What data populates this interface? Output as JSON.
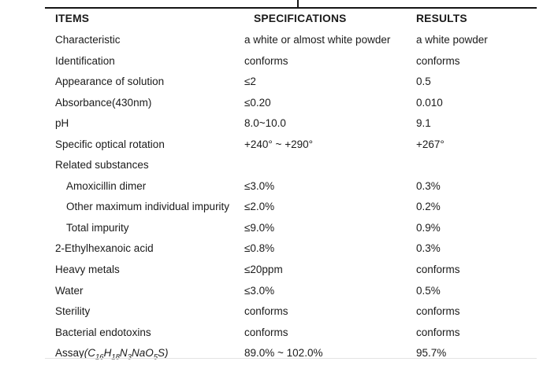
{
  "table": {
    "headers": [
      {
        "label": "ITEMS"
      },
      {
        "label": "SPECIFICATIONS"
      },
      {
        "label": "RESULTS"
      }
    ],
    "rows": [
      {
        "item": "Characteristic",
        "spec": "a white or almost white powder",
        "result": "a white powder"
      },
      {
        "item": "Identification",
        "spec": "conforms",
        "result": "conforms"
      },
      {
        "item": "Appearance of solution",
        "spec": "≤2",
        "result": "0.5"
      },
      {
        "item": "Absorbance(430nm)",
        "spec": "≤0.20",
        "result": "0.010"
      },
      {
        "item": "pH",
        "spec": "8.0~10.0",
        "result": "9.1"
      },
      {
        "item": "Specific optical rotation",
        "spec": "+240° ~ +290°",
        "result": "+267°"
      },
      {
        "item": "Related substances",
        "spec": "",
        "result": ""
      },
      {
        "item": "Amoxicillin dimer",
        "indent": true,
        "spec": "≤3.0%",
        "result": "0.3%"
      },
      {
        "item": "Other maximum individual impurity",
        "indent": true,
        "spec": "≤2.0%",
        "result": "0.2%"
      },
      {
        "item": "Total impurity",
        "indent": true,
        "spec": "≤9.0%",
        "result": "0.9%"
      },
      {
        "item": "2-Ethylhexanoic acid",
        "spec": "≤0.8%",
        "result": "0.3%"
      },
      {
        "item": "Heavy metals",
        "spec": "≤20ppm",
        "result": "conforms"
      },
      {
        "item": "Water",
        "spec": "≤3.0%",
        "result": "0.5%"
      },
      {
        "item": "Sterility",
        "spec": "conforms",
        "result": "conforms"
      },
      {
        "item": "Bacterial endotoxins",
        "spec": "conforms",
        "result": "conforms"
      },
      {
        "item": "Assay",
        "item_formula": [
          {
            "text": "(C"
          },
          {
            "sub": "16"
          },
          {
            "text": "H"
          },
          {
            "sub": "18"
          },
          {
            "text": "N"
          },
          {
            "sub": "3"
          },
          {
            "text": "NaO"
          },
          {
            "sub": "5"
          },
          {
            "text": "S)"
          }
        ],
        "spec": "89.0% ~ 102.0%",
        "result": "95.7%"
      }
    ]
  },
  "colors": {
    "background": "#ffffff",
    "text": "#1b1b1b",
    "rule": "#151515",
    "faint_rule": "#e4e4e4"
  }
}
